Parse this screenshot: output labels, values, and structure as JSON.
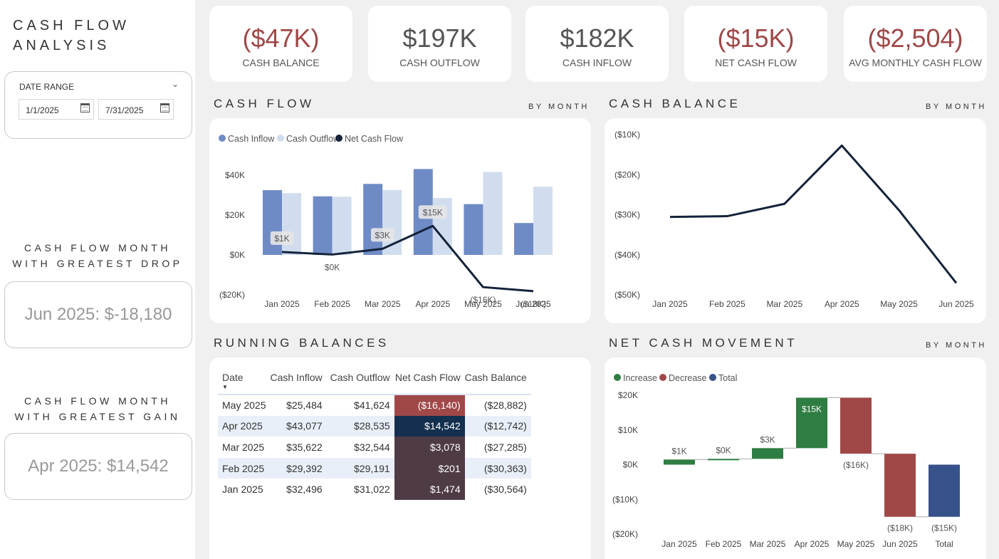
{
  "app": {
    "title_line1": "CASH FLOW",
    "title_line2": "ANALYSIS"
  },
  "date_slicer": {
    "title": "DATE RANGE",
    "start": "1/1/2025",
    "end": "7/31/2025"
  },
  "greatest_drop": {
    "heading_line1": "CASH FLOW MONTH",
    "heading_line2": "WITH GREATEST DROP",
    "value": "Jun 2025: $-18,180"
  },
  "greatest_gain": {
    "heading_line1": "CASH FLOW MONTH",
    "heading_line2": "WITH GREATEST GAIN",
    "value": "Apr 2025: $14,542"
  },
  "kpis": [
    {
      "value": "($47K)",
      "label": "CASH BALANCE",
      "negative": true
    },
    {
      "value": "$197K",
      "label": "CASH OUTFLOW",
      "negative": false
    },
    {
      "value": "$182K",
      "label": "CASH INFLOW",
      "negative": false
    },
    {
      "value": "($15K)",
      "label": "NET CASH FLOW",
      "negative": true
    },
    {
      "value": "($2,504)",
      "label": "AVG MONTHLY CASH FLOW",
      "negative": true
    }
  ],
  "sections": {
    "cash_flow": {
      "title": "CASH FLOW",
      "subtitle": "BY MONTH"
    },
    "cash_balance": {
      "title": "CASH BALANCE",
      "subtitle": "BY MONTH"
    },
    "running_balances": {
      "title": "RUNNING BALANCES"
    },
    "net_cash_movement": {
      "title": "NET CASH MOVEMENT",
      "subtitle": "BY MONTH"
    }
  },
  "colors": {
    "inflow": "#6f8bc6",
    "outflow": "#d1ddef",
    "net_line": "#14233a",
    "increase": "#2e7d42",
    "decrease": "#a04848",
    "total": "#37528a",
    "negative_text": "#a04848"
  },
  "running_balances": {
    "columns": [
      "Date",
      "Cash Inflow",
      "Cash Outflow",
      "Net Cash Flow",
      "Cash Balance"
    ],
    "rows": [
      {
        "date": "May 2025",
        "inflow": "$25,484",
        "outflow": "$41,624",
        "net": "($16,140)",
        "balance": "($28,882)",
        "net_bg": "#a04848"
      },
      {
        "date": "Apr 2025",
        "inflow": "$43,077",
        "outflow": "$28,535",
        "net": "$14,542",
        "balance": "($12,742)",
        "net_bg": "#14304f"
      },
      {
        "date": "Mar 2025",
        "inflow": "$35,622",
        "outflow": "$32,544",
        "net": "$3,078",
        "balance": "($27,285)",
        "net_bg": "#4f3b46"
      },
      {
        "date": "Feb 2025",
        "inflow": "$29,392",
        "outflow": "$29,191",
        "net": "$201",
        "balance": "($30,363)",
        "net_bg": "#4f3b46"
      },
      {
        "date": "Jan 2025",
        "inflow": "$32,496",
        "outflow": "$31,022",
        "net": "$1,474",
        "balance": "($30,564)",
        "net_bg": "#4f3b46"
      }
    ]
  },
  "chart_data": [
    {
      "id": "cash_flow",
      "type": "bar",
      "categories": [
        "Jan 2025",
        "Feb 2025",
        "Mar 2025",
        "Apr 2025",
        "May 2025",
        "Jun 2025"
      ],
      "series": [
        {
          "name": "Cash Inflow",
          "type": "bar",
          "values": [
            32496,
            29392,
            35622,
            43077,
            25484,
            16000
          ]
        },
        {
          "name": "Cash Outflow",
          "type": "bar",
          "values": [
            31022,
            29191,
            32544,
            28535,
            41624,
            34180
          ]
        },
        {
          "name": "Net Cash Flow",
          "type": "line",
          "values": [
            1474,
            201,
            3078,
            14542,
            -16140,
            -18180
          ]
        }
      ],
      "point_labels": [
        "$1K",
        "$0K",
        "$3K",
        "$15K",
        "($16K)",
        "($18K)"
      ],
      "ytick_labels": [
        "$40K",
        "$20K",
        "$0K",
        "($20K)"
      ],
      "yticks": [
        40000,
        20000,
        0,
        -20000
      ],
      "ylim": [
        -20000,
        40000
      ],
      "legend": "top-left"
    },
    {
      "id": "cash_balance",
      "type": "line",
      "categories": [
        "Jan 2025",
        "Feb 2025",
        "Mar 2025",
        "Apr 2025",
        "May 2025",
        "Jun 2025"
      ],
      "series": [
        {
          "name": "Cash Balance",
          "values": [
            -30564,
            -30363,
            -27285,
            -12742,
            -28882,
            -47062
          ]
        }
      ],
      "ytick_labels": [
        "($10K)",
        "($20K)",
        "($30K)",
        "($40K)",
        "($50K)"
      ],
      "yticks": [
        -10000,
        -20000,
        -30000,
        -40000,
        -50000
      ],
      "ylim": [
        -50000,
        -10000
      ]
    },
    {
      "id": "net_cash_movement",
      "type": "bar",
      "subtype": "waterfall",
      "categories": [
        "Jan 2025",
        "Feb 2025",
        "Mar 2025",
        "Apr 2025",
        "May 2025",
        "Jun 2025",
        "Total"
      ],
      "values": [
        1474,
        201,
        3078,
        14542,
        -16140,
        -18180,
        -15025
      ],
      "value_labels": [
        "$1K",
        "$0K",
        "$3K",
        "$15K",
        "($16K)",
        "($18K)",
        "($15K)"
      ],
      "legend_entries": [
        "Increase",
        "Decrease",
        "Total"
      ],
      "ytick_labels": [
        "$20K",
        "$10K",
        "$0K",
        "($10K)",
        "($20K)"
      ],
      "yticks": [
        20000,
        10000,
        0,
        -10000,
        -20000
      ],
      "ylim": [
        -20000,
        20000
      ],
      "legend": "top-left"
    }
  ]
}
